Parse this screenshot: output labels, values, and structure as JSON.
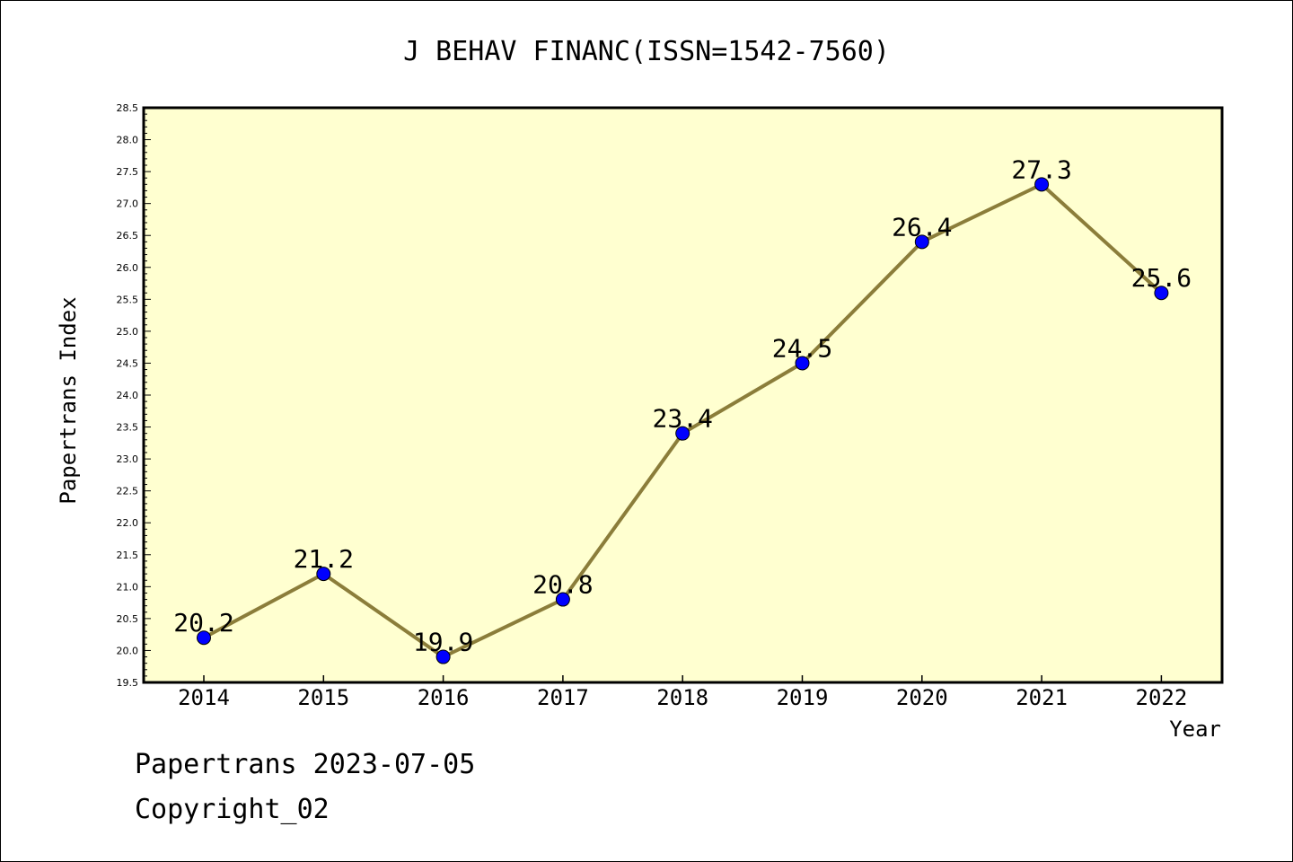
{
  "chart_data": {
    "type": "line",
    "title": "J BEHAV FINANC(ISSN=1542-7560)",
    "xlabel": "Year",
    "ylabel": "Papertrans Index",
    "x": [
      "2014",
      "2015",
      "2016",
      "2017",
      "2018",
      "2019",
      "2020",
      "2021",
      "2022"
    ],
    "series": [
      {
        "values": [
          20.2,
          21.2,
          19.9,
          20.8,
          23.4,
          24.5,
          26.4,
          27.3,
          25.6
        ],
        "labels": [
          "20.2",
          "21.2",
          "19.9",
          "20.8",
          "23.4",
          "24.5",
          "26.4",
          "27.3",
          "25.6"
        ]
      }
    ],
    "ylim": [
      19.5,
      28.5
    ],
    "yticks": [
      "19.5",
      "20.0",
      "20.5",
      "21.0",
      "21.5",
      "22.0",
      "22.5",
      "23.0",
      "23.5",
      "24.0",
      "24.5",
      "25.0",
      "25.5",
      "26.0",
      "26.5",
      "27.0",
      "27.5",
      "28.0",
      "28.5"
    ],
    "grid": false,
    "colors": {
      "plot_background": "#ffffd0",
      "line": "#8b7d3a",
      "marker": "#0000ff"
    }
  },
  "footer": {
    "line1": "Papertrans 2023-07-05",
    "line2": "Copyright_02"
  }
}
